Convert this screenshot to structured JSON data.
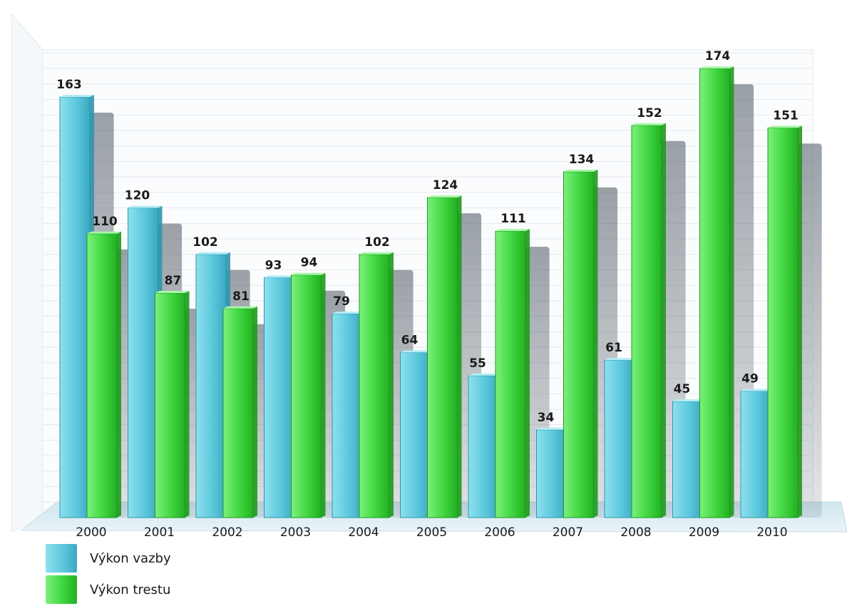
{
  "chart_data": {
    "type": "bar",
    "title": "",
    "xlabel": "",
    "ylabel": "",
    "categories": [
      "2000",
      "2001",
      "2002",
      "2003",
      "2004",
      "2005",
      "2006",
      "2007",
      "2008",
      "2009",
      "2010"
    ],
    "series": [
      {
        "name": "Výkon vazby",
        "color": "#5cc8dc",
        "values": [
          163,
          120,
          102,
          93,
          79,
          64,
          55,
          34,
          61,
          45,
          49
        ]
      },
      {
        "name": "Výkon trestu",
        "color": "#3fd63f",
        "values": [
          110,
          87,
          81,
          94,
          102,
          124,
          111,
          134,
          152,
          174,
          151
        ]
      }
    ],
    "ylim": [
      0,
      180
    ],
    "grid": true,
    "legend_position": "bottom-left"
  }
}
